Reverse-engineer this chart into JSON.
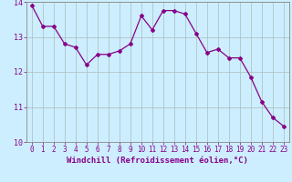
{
  "x": [
    0,
    1,
    2,
    3,
    4,
    5,
    6,
    7,
    8,
    9,
    10,
    11,
    12,
    13,
    14,
    15,
    16,
    17,
    18,
    19,
    20,
    21,
    22,
    23
  ],
  "y": [
    13.9,
    13.3,
    13.3,
    12.8,
    12.7,
    12.2,
    12.5,
    12.5,
    12.6,
    12.8,
    13.6,
    13.2,
    13.75,
    13.75,
    13.65,
    13.1,
    12.55,
    12.65,
    12.4,
    12.4,
    11.85,
    11.15,
    10.7,
    10.45
  ],
  "line_color": "#880088",
  "marker": "D",
  "markersize": 2.0,
  "linewidth": 0.9,
  "xlabel": "Windchill (Refroidissement éolien,°C)",
  "xlabel_fontsize": 6.5,
  "xlim": [
    -0.5,
    23.5
  ],
  "ylim": [
    10,
    14
  ],
  "yticks": [
    10,
    11,
    12,
    13,
    14
  ],
  "xticks": [
    0,
    1,
    2,
    3,
    4,
    5,
    6,
    7,
    8,
    9,
    10,
    11,
    12,
    13,
    14,
    15,
    16,
    17,
    18,
    19,
    20,
    21,
    22,
    23
  ],
  "bg_color": "#cceeff",
  "grid_color": "#aabcbc",
  "tick_fontsize": 5.5,
  "spine_color": "#888888"
}
